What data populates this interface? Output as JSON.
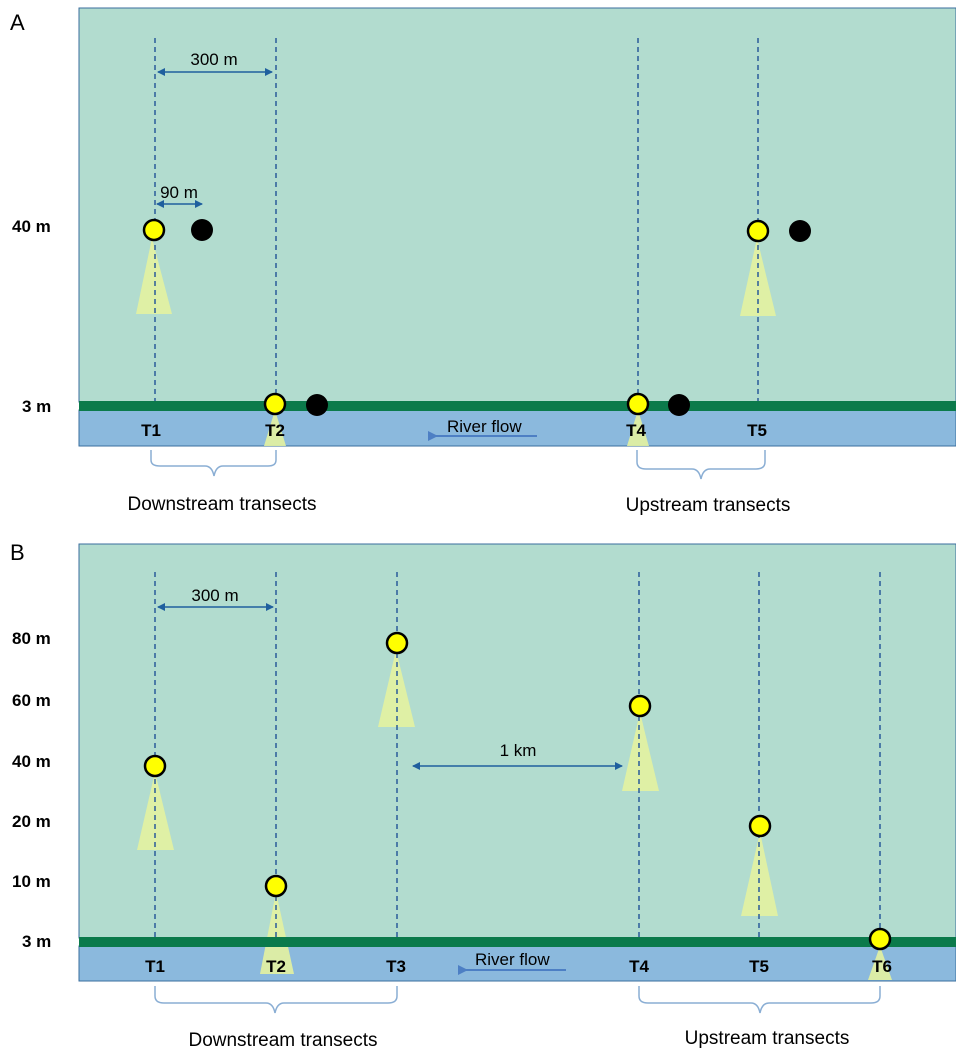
{
  "panels": [
    {
      "letter": "A",
      "y_labels": [
        "40 m",
        "3 m"
      ],
      "distance_labels": [
        "300 m",
        "90 m"
      ],
      "transects": [
        "T1",
        "T2",
        "T4",
        "T5"
      ],
      "river_flow": "River flow",
      "groups": [
        "Downstream transects",
        "Upstream transects"
      ]
    },
    {
      "letter": "B",
      "y_labels": [
        "80 m",
        "60 m",
        "40 m",
        "20 m",
        "10 m",
        "3 m"
      ],
      "distance_labels": [
        "300 m",
        "1 km"
      ],
      "transects": [
        "T1",
        "T2",
        "T3",
        "T4",
        "T5",
        "T6"
      ],
      "river_flow": "River flow",
      "groups": [
        "Downstream transects",
        "Upstream transects"
      ]
    }
  ],
  "colors": {
    "field": "#b2dccf",
    "riverbank": "#0b7a4b",
    "river": "#8bb9dd",
    "transect_line": "#2a5b9a",
    "arrow": "#1f5f9e",
    "detector": "#ffff00",
    "beam": "#e3f2a0",
    "speaker": "#000000",
    "brace": "#8aaed4"
  }
}
